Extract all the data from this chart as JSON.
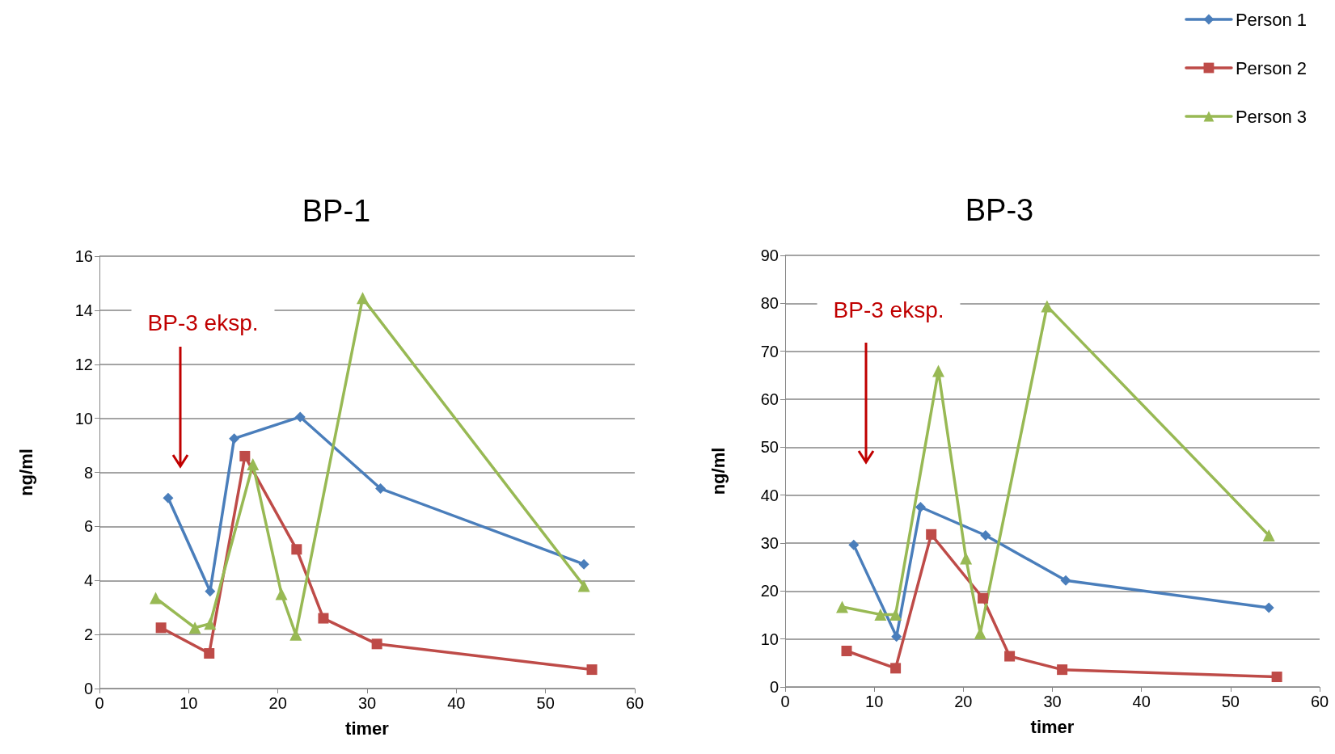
{
  "chart_data": [
    {
      "type": "line",
      "title": "BP-1",
      "xlabel": "timer",
      "ylabel": "ng/ml",
      "xlim": [
        0,
        60
      ],
      "xticks": [
        0,
        10,
        20,
        30,
        40,
        50,
        60
      ],
      "ylim": [
        0,
        16
      ],
      "yticks": [
        0,
        2,
        4,
        6,
        8,
        10,
        12,
        14,
        16
      ],
      "grid": "y",
      "legend": false,
      "annotations": [
        "BP-3 eksp."
      ],
      "series": [
        {
          "color": "#4a7ebb",
          "marker": "diamond",
          "x": [
            7.7,
            12.4,
            15.1,
            22.5,
            31.5,
            54.3
          ],
          "values": [
            7.05,
            3.6,
            9.25,
            10.05,
            7.4,
            4.6
          ]
        },
        {
          "color": "#be4b48",
          "marker": "square",
          "x": [
            6.9,
            12.3,
            16.3,
            22.1,
            25.1,
            31.1,
            55.2
          ],
          "values": [
            2.25,
            1.3,
            8.6,
            5.15,
            2.6,
            1.65,
            0.7
          ]
        },
        {
          "color": "#98b954",
          "marker": "triangle",
          "x": [
            6.3,
            10.7,
            12.4,
            17.2,
            20.4,
            22.0,
            29.5,
            54.3
          ],
          "values": [
            3.35,
            2.25,
            2.4,
            8.3,
            3.5,
            2.0,
            14.45,
            3.8
          ]
        }
      ]
    },
    {
      "type": "line",
      "title": "BP-3",
      "xlabel": "timer",
      "ylabel": "ng/ml",
      "xlim": [
        0,
        60
      ],
      "xticks": [
        0,
        10,
        20,
        30,
        40,
        50,
        60
      ],
      "ylim": [
        0,
        90
      ],
      "yticks": [
        0,
        10,
        20,
        30,
        40,
        50,
        60,
        70,
        80,
        90
      ],
      "grid": "y",
      "legend": "top right",
      "annotations": [
        "BP-3 eksp."
      ],
      "series": [
        {
          "name": "Person 1",
          "color": "#4a7ebb",
          "marker": "diamond",
          "x": [
            7.7,
            12.5,
            15.2,
            22.5,
            31.5,
            54.3
          ],
          "values": [
            29.6,
            10.5,
            37.5,
            31.6,
            22.2,
            16.5
          ]
        },
        {
          "name": "Person 2",
          "color": "#be4b48",
          "marker": "square",
          "x": [
            6.9,
            12.4,
            16.4,
            22.2,
            25.2,
            31.1,
            55.2
          ],
          "values": [
            7.5,
            3.9,
            31.8,
            18.5,
            6.4,
            3.6,
            2.1
          ]
        },
        {
          "name": "Person 3",
          "color": "#98b954",
          "marker": "triangle",
          "x": [
            6.4,
            10.7,
            12.4,
            17.2,
            20.3,
            21.9,
            29.4,
            54.3
          ],
          "values": [
            16.7,
            15.1,
            15.1,
            65.9,
            26.8,
            11.2,
            79.4,
            31.6
          ]
        }
      ]
    }
  ]
}
